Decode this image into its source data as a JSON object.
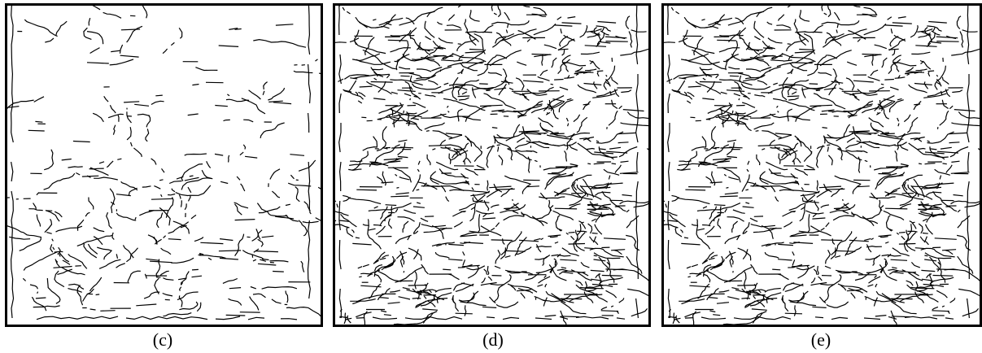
{
  "panels": [
    {
      "id": "c",
      "caption": "(c)",
      "density": 0.35
    },
    {
      "id": "d",
      "caption": "(d)",
      "density": 1.0
    },
    {
      "id": "e",
      "caption": "(e)",
      "density": 1.0
    }
  ],
  "colors": {
    "edges": "#000000",
    "background": "#ffffff"
  }
}
